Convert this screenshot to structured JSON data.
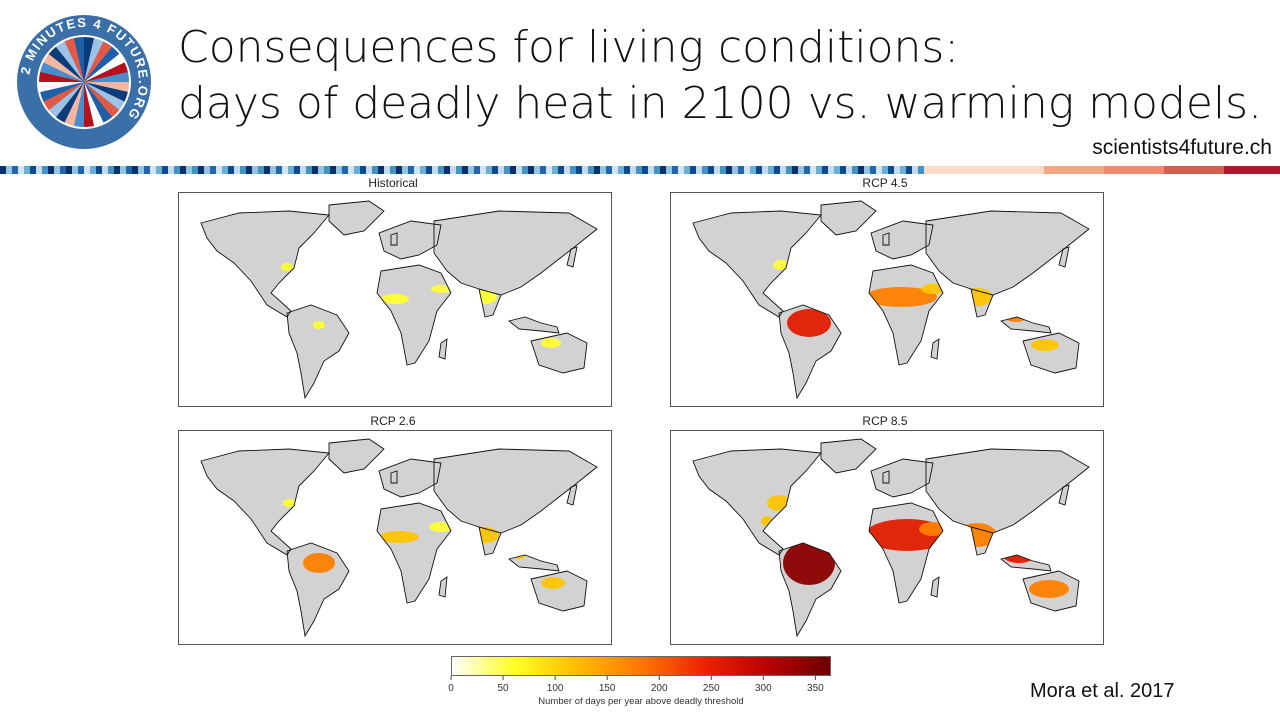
{
  "logo": {
    "text": "2 MINUTES 4 FUTURE.ORG",
    "colors": [
      "#0b3c7a",
      "#1f5fa8",
      "#4b8ccc",
      "#9cc3e6",
      "#ffffff",
      "#f4b6a0",
      "#e05a45",
      "#b5121b"
    ]
  },
  "title": {
    "line1": "Consequences for living conditions:",
    "line2": "days of deadly heat in 2100 vs. warming models."
  },
  "site": "scientists4future.ch",
  "panels": [
    {
      "title": "Historical",
      "level": 0
    },
    {
      "title": "RCP 4.5",
      "level": 2
    },
    {
      "title": "RCP 2.6",
      "level": 1
    },
    {
      "title": "RCP 8.5",
      "level": 3
    }
  ],
  "colorbar": {
    "ticks": [
      "0",
      "50",
      "100",
      "150",
      "200",
      "250",
      "300",
      "350"
    ],
    "label": "Number of days per year above deadly threshold",
    "colors": [
      "#ffffff",
      "#ffff22",
      "#ffbb00",
      "#ff7700",
      "#ee2200",
      "#bb0000",
      "#6b0000"
    ]
  },
  "citation": "Mora et al. 2017"
}
